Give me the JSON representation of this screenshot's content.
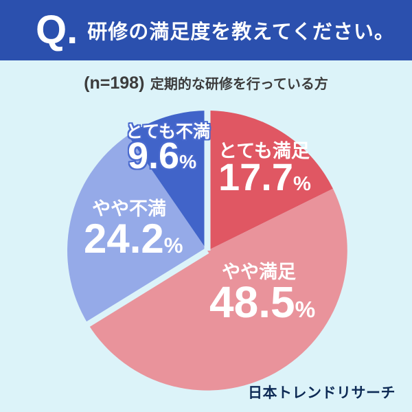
{
  "header": {
    "q_label": "Q.",
    "title": "研修の満足度を教えてください。"
  },
  "subtitle": {
    "sample": "(n=198)",
    "description": "定期的な研修を行っている方"
  },
  "footer": {
    "brand": "日本トレンドリサーチ"
  },
  "palette": {
    "header_bg": "#2b50ae",
    "background": "#dcf3f9",
    "slice_red": "#e05763",
    "slice_pink": "#e9939b",
    "slice_light_blue": "#95aae8",
    "slice_dark_blue": "#4164c9",
    "label_text": "#ffffff",
    "dark_blue_label_outline": "#4a6ace",
    "subtitle_text": "#3c3c3c",
    "footer_text": "#0d2a55"
  },
  "chart_data": {
    "type": "pie",
    "title": "研修の満足度を教えてください。",
    "sample_size": 198,
    "categories": [
      "とても満足",
      "やや満足",
      "やや不満",
      "とても不満"
    ],
    "values": [
      17.7,
      48.5,
      24.2,
      9.6
    ],
    "unit": "%",
    "colors": [
      "#e05763",
      "#e9939b",
      "#95aae8",
      "#4164c9"
    ],
    "start_angle_deg": 0,
    "direction": "clockwise",
    "legend": "none",
    "gap_before_indices": [
      0,
      2
    ],
    "gap_width": 9,
    "slices": [
      {
        "name": "とても満足",
        "value_text": "17.7",
        "unit": "%"
      },
      {
        "name": "やや満足",
        "value_text": "48.5",
        "unit": "%"
      },
      {
        "name": "やや不満",
        "value_text": "24.2",
        "unit": "%"
      },
      {
        "name": "とても不満",
        "value_text": "9.6",
        "unit": "%"
      }
    ]
  }
}
